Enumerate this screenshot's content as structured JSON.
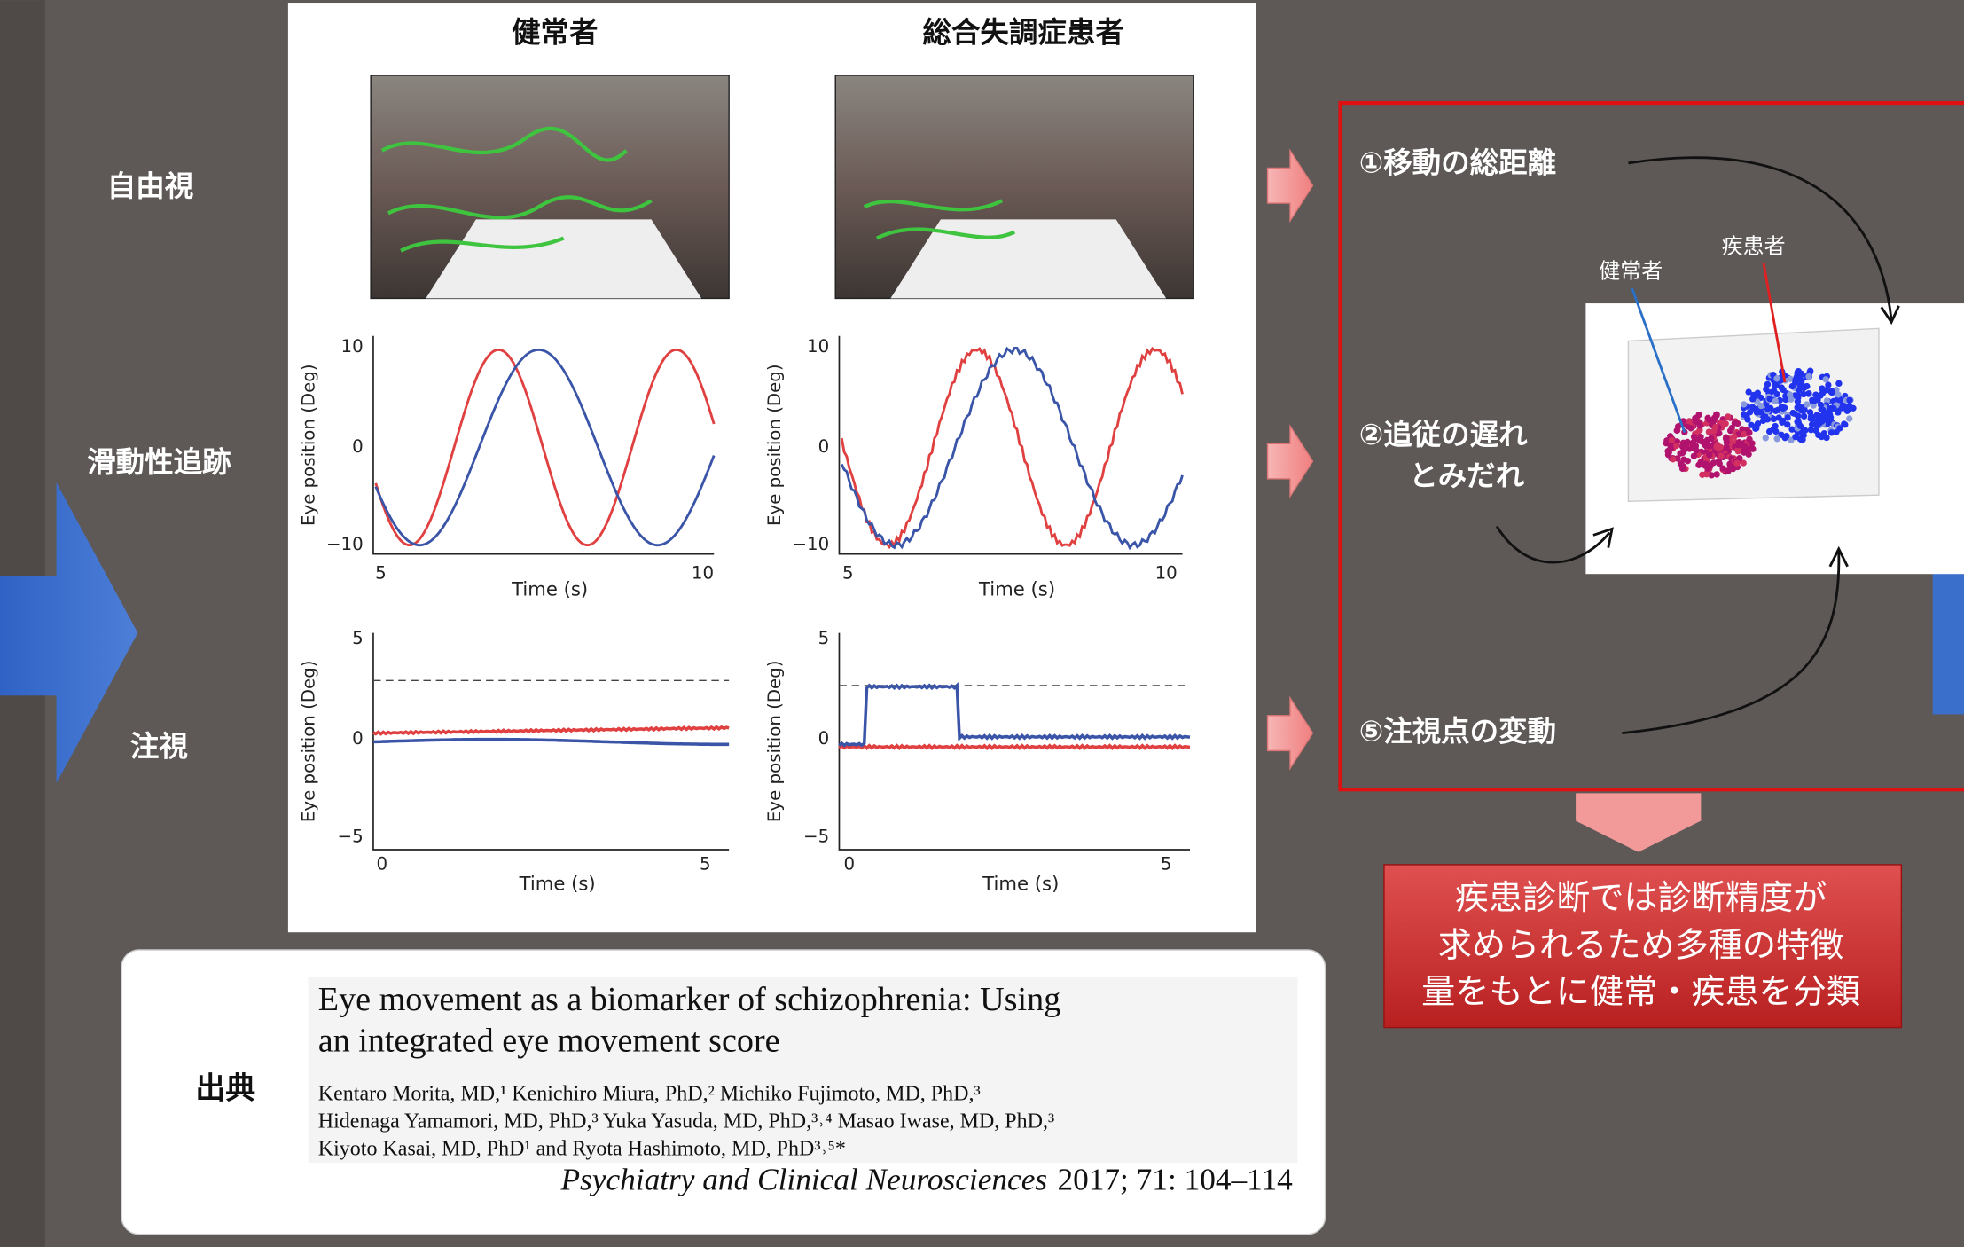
{
  "row_labels": [
    "自由視",
    "滑動性追跡",
    "注視"
  ],
  "column_headers": [
    "健常者",
    "総合失調症患者"
  ],
  "plots": [
    {
      "ylabel": "Eye position (Deg)",
      "xlabel": "Time (s)",
      "yticks": [
        "10",
        "0",
        "−10"
      ],
      "xticks": [
        "5",
        "10"
      ]
    },
    {
      "ylabel": "Eye position (Deg)",
      "xlabel": "Time (s)",
      "yticks": [
        "10",
        "0",
        "−10"
      ],
      "xticks": [
        "5",
        "10"
      ]
    },
    {
      "ylabel": "Eye position (Deg)",
      "xlabel": "Time (s)",
      "yticks": [
        "5",
        "0",
        "−5"
      ],
      "xticks": [
        "0",
        "5"
      ]
    },
    {
      "ylabel": "Eye position (Deg)",
      "xlabel": "Time (s)",
      "yticks": [
        "5",
        "0",
        "−5"
      ],
      "xticks": [
        "0",
        "5"
      ]
    }
  ],
  "features": [
    [
      "①移動の総距離"
    ],
    [
      "②追従の遅れ",
      "とみだれ"
    ],
    [
      "⑤注視点の変動"
    ]
  ],
  "scatter_labels": [
    "健常者",
    "疾患者"
  ],
  "conclusion": [
    "疾患診断では診断精度が",
    "求められるため多種の特徴",
    "量をもとに健常・疾患を分類"
  ],
  "citation": {
    "label": "出典",
    "title": [
      "Eye movement as a biomarker of schizophrenia: Using",
      "an integrated eye movement score"
    ],
    "authors": [
      "Kentaro Morita, MD,¹ Kenichiro Miura, PhD,² Michiko Fujimoto, MD, PhD,³",
      "Hidenaga Yamamori, MD, PhD,³ Yuka Yasuda, MD, PhD,³˒⁴ Masao Iwase, MD, PhD,³",
      "Kiyoto Kasai, MD, PhD¹ and Ryota Hashimoto, MD, PhD³˒⁵*"
    ],
    "journal": "Psychiatry and Clinical Neurosciences",
    "details": "2017; 71: 104–114"
  }
}
